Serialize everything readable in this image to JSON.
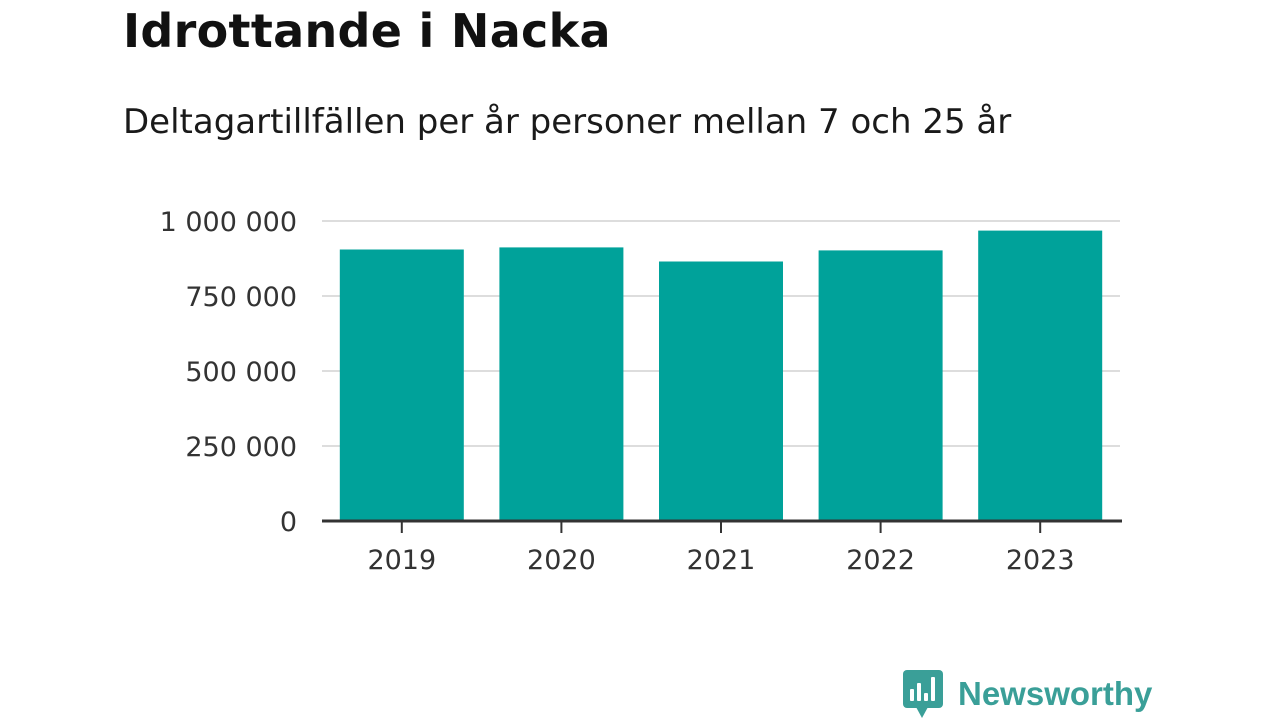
{
  "title": "Idrottande i Nacka",
  "subtitle": "Deltagartillfällen per år personer mellan 7 och 25 år",
  "brand": {
    "name": "Newsworthy",
    "color": "#3a9f98"
  },
  "chart_data": {
    "type": "bar",
    "categories": [
      "2019",
      "2020",
      "2021",
      "2022",
      "2023"
    ],
    "values": [
      905000,
      912000,
      865000,
      902000,
      968000
    ],
    "yticks": [
      0,
      250000,
      500000,
      750000,
      1000000
    ],
    "ytick_labels": [
      "0",
      "250 000",
      "500 000",
      "750 000",
      "1 000 000"
    ],
    "ylim": [
      0,
      1000000
    ],
    "bar_color": "#00a29a",
    "gridline_color": "#dddddd",
    "axis_color": "#333333",
    "grid": true,
    "legend": "none"
  }
}
